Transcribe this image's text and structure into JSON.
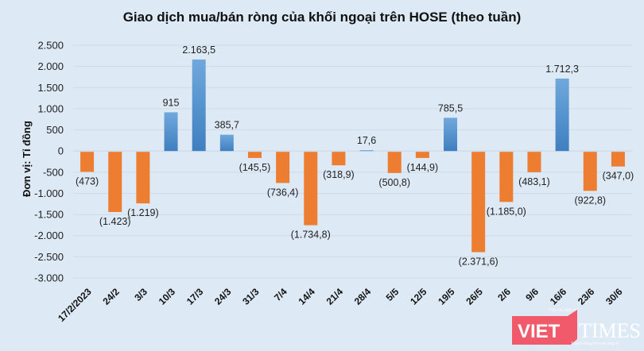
{
  "title": "Giao dịch mua/bán ròng của khối ngoại trên HOSE (theo tuần)",
  "watermark": {
    "brand_left": "VIET",
    "brand_right": "TIMES",
    "tagline_top": "Tạp chí điện tử",
    "tagline_bottom": "Truyền thông trên nền tảng số"
  },
  "colors": {
    "positive": "#5b9bd5",
    "positive_dark": "#4281c0",
    "negative": "#ed7d31",
    "background": "#dde9f5",
    "grid": "#cfdbe8",
    "brand_red": "#f05a6a"
  },
  "chart_data": {
    "type": "bar",
    "title": "Giao dịch mua/bán ròng của khối ngoại trên HOSE (theo tuần)",
    "xlabel": "",
    "ylabel": "Đơn vị: Tỉ đồng",
    "ylim": [
      -3000,
      2500
    ],
    "yticks": [
      2500,
      2000,
      1500,
      1000,
      500,
      0,
      -500,
      -1000,
      -1500,
      -2000,
      -2500,
      -3000
    ],
    "ytick_labels": [
      "2.500",
      "2.000",
      "1.500",
      "1.000",
      "500",
      "0",
      "-500",
      "-1.000",
      "-1.500",
      "-2.000",
      "-2.500",
      "-3.000"
    ],
    "grid": true,
    "legend": "none",
    "categories": [
      "17/2/2023",
      "24/2",
      "3/3",
      "10/3",
      "17/3",
      "24/3",
      "31/3",
      "7/4",
      "14/4",
      "21/4",
      "28/4",
      "5/5",
      "12/5",
      "19/5",
      "26/5",
      "2/6",
      "9/6",
      "16/6",
      "23/6",
      "30/6"
    ],
    "values": [
      -473,
      -1423,
      -1219,
      915,
      2163.5,
      385.7,
      -145.5,
      -736.4,
      -1734.8,
      -318.9,
      17.6,
      -500.8,
      -144.9,
      785.5,
      -2371.6,
      -1185.0,
      -483.1,
      1712.3,
      -922.8,
      -347.0
    ],
    "data_labels": [
      "(473)",
      "(1.423)",
      "(1.219)",
      "915",
      "2.163,5",
      "385,7",
      "(145,5)",
      "(736,4)",
      "(1.734,8)",
      "(318,9)",
      "17,6",
      "(500,8)",
      "(144,9)",
      "785,5",
      "(2.371,6)",
      "(1.185,0)",
      "(483,1)",
      "1.712,3",
      "(922,8)",
      "(347,0)"
    ]
  }
}
